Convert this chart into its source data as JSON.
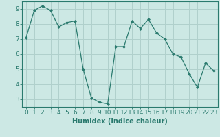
{
  "x": [
    0,
    1,
    2,
    3,
    4,
    5,
    6,
    7,
    8,
    9,
    10,
    11,
    12,
    13,
    14,
    15,
    16,
    17,
    18,
    19,
    20,
    21,
    22,
    23
  ],
  "y": [
    7.1,
    8.9,
    9.2,
    8.9,
    7.8,
    8.1,
    8.2,
    5.0,
    3.1,
    2.8,
    2.7,
    6.5,
    6.5,
    8.2,
    7.7,
    8.3,
    7.4,
    7.0,
    6.0,
    5.8,
    4.7,
    3.8,
    5.4,
    4.9
  ],
  "line_color": "#2a7a6e",
  "marker": "D",
  "marker_size": 2.0,
  "bg_color": "#cce8e4",
  "grid_color": "#b0d0cc",
  "xlabel": "Humidex (Indice chaleur)",
  "xlim": [
    -0.5,
    23.5
  ],
  "ylim": [
    2.5,
    9.5
  ],
  "yticks": [
    3,
    4,
    5,
    6,
    7,
    8,
    9
  ],
  "xticks": [
    0,
    1,
    2,
    3,
    4,
    5,
    6,
    7,
    8,
    9,
    10,
    11,
    12,
    13,
    14,
    15,
    16,
    17,
    18,
    19,
    20,
    21,
    22,
    23
  ],
  "tick_color": "#2a7a6e",
  "axis_color": "#2a7a6e",
  "label_fontsize": 7,
  "tick_fontsize": 6.5
}
